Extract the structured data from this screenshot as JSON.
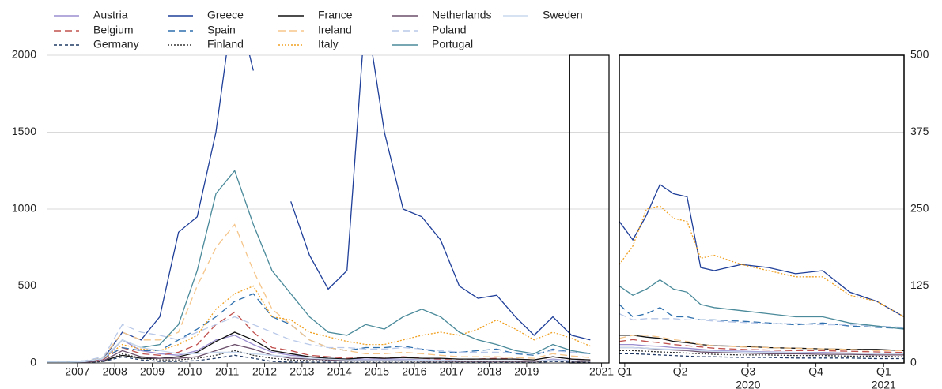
{
  "chart_data": [
    {
      "type": "line",
      "ylim": [
        0,
        2000
      ],
      "yticks": [
        0,
        500,
        1000,
        1500,
        2000
      ],
      "y_axis_side": "left",
      "grid": true,
      "xlim": [
        2006.2,
        2021.2
      ],
      "xticks": [
        2007,
        2008,
        2009,
        2010,
        2011,
        2012,
        2013,
        2014,
        2015,
        2016,
        2017,
        2018,
        2019,
        2021
      ],
      "x": [
        2006.2,
        2006.7,
        2007.2,
        2007.7,
        2008.2,
        2008.7,
        2009.2,
        2009.7,
        2010.2,
        2010.7,
        2011.2,
        2011.7,
        2012.2,
        2012.7,
        2013.2,
        2013.7,
        2014.2,
        2014.7,
        2015.2,
        2015.7,
        2016.2,
        2016.7,
        2017.2,
        2017.7,
        2018.2,
        2018.7,
        2019.2,
        2019.7,
        2020.2,
        2020.7
      ],
      "series": [
        {
          "name": "Austria",
          "color": "#9b8fd0",
          "dash": "solid",
          "values": [
            3,
            3,
            5,
            20,
            150,
            80,
            60,
            50,
            80,
            150,
            180,
            120,
            70,
            50,
            40,
            30,
            25,
            25,
            25,
            25,
            20,
            20,
            15,
            15,
            15,
            15,
            10,
            25,
            15,
            12
          ]
        },
        {
          "name": "Belgium",
          "color": "#c0504d",
          "dash": "dashed",
          "values": [
            3,
            3,
            5,
            25,
            100,
            60,
            50,
            70,
            120,
            250,
            330,
            200,
            100,
            80,
            50,
            40,
            30,
            35,
            30,
            40,
            30,
            25,
            25,
            25,
            30,
            25,
            20,
            40,
            25,
            20
          ]
        },
        {
          "name": "Germany",
          "color": "#1f3864",
          "dash": "short",
          "values": [
            1,
            1,
            2,
            10,
            40,
            20,
            10,
            10,
            15,
            30,
            50,
            30,
            10,
            5,
            5,
            5,
            3,
            3,
            3,
            3,
            3,
            3,
            3,
            3,
            3,
            3,
            2,
            10,
            5,
            3
          ]
        },
        {
          "name": "Greece",
          "color": "#1f3f99",
          "dash": "solid",
          "values": [
            5,
            5,
            10,
            30,
            200,
            150,
            300,
            850,
            950,
            1500,
            2400,
            1900,
            null,
            1050,
            700,
            480,
            600,
            2300,
            1500,
            1000,
            950,
            800,
            500,
            420,
            440,
            300,
            180,
            300,
            180,
            150
          ]
        },
        {
          "name": "Spain",
          "color": "#2e6fad",
          "dash": "dashed",
          "values": [
            5,
            5,
            8,
            30,
            100,
            80,
            80,
            150,
            220,
            300,
            400,
            450,
            300,
            250,
            150,
            100,
            80,
            100,
            100,
            110,
            90,
            70,
            70,
            80,
            90,
            60,
            50,
            90,
            70,
            60
          ]
        },
        {
          "name": "Finland",
          "color": "#333333",
          "dash": "dotted",
          "values": [
            2,
            2,
            3,
            10,
            60,
            30,
            20,
            20,
            30,
            50,
            80,
            50,
            30,
            20,
            15,
            15,
            12,
            12,
            12,
            12,
            10,
            10,
            8,
            8,
            8,
            8,
            6,
            15,
            10,
            8
          ]
        },
        {
          "name": "France",
          "color": "#111111",
          "dash": "solid",
          "values": [
            3,
            3,
            4,
            15,
            50,
            30,
            30,
            40,
            70,
            140,
            200,
            150,
            80,
            60,
            40,
            30,
            25,
            35,
            30,
            35,
            30,
            30,
            25,
            25,
            25,
            25,
            20,
            40,
            25,
            20
          ]
        },
        {
          "name": "Ireland",
          "color": "#f5c58a",
          "dash": "dashed",
          "values": [
            5,
            5,
            8,
            40,
            200,
            150,
            150,
            200,
            500,
            750,
            900,
            600,
            350,
            250,
            150,
            100,
            80,
            60,
            60,
            70,
            60,
            50,
            40,
            40,
            40,
            35,
            30,
            60,
            45,
            35
          ]
        },
        {
          "name": "Italy",
          "color": "#f0a020",
          "dash": "dotted",
          "values": [
            5,
            5,
            8,
            30,
            120,
            90,
            80,
            120,
            180,
            350,
            450,
            500,
            300,
            280,
            200,
            170,
            140,
            120,
            120,
            150,
            180,
            200,
            180,
            220,
            280,
            220,
            150,
            200,
            160,
            110
          ]
        },
        {
          "name": "Netherlands",
          "color": "#6b4f6b",
          "dash": "solid",
          "values": [
            2,
            2,
            4,
            15,
            80,
            40,
            30,
            30,
            40,
            80,
            120,
            90,
            50,
            30,
            25,
            20,
            15,
            15,
            15,
            15,
            12,
            12,
            10,
            10,
            10,
            10,
            8,
            20,
            12,
            10
          ]
        },
        {
          "name": "Poland",
          "color": "#b8c8e8",
          "dash": "dashed",
          "values": [
            10,
            10,
            15,
            40,
            250,
            200,
            180,
            150,
            200,
            250,
            300,
            250,
            200,
            150,
            120,
            100,
            100,
            90,
            90,
            100,
            90,
            80,
            70,
            70,
            70,
            65,
            60,
            80,
            70,
            65
          ]
        },
        {
          "name": "Portugal",
          "color": "#4a8a9a",
          "dash": "solid",
          "values": [
            5,
            5,
            8,
            30,
            150,
            100,
            120,
            250,
            600,
            1100,
            1250,
            900,
            600,
            450,
            300,
            200,
            180,
            250,
            220,
            300,
            350,
            300,
            200,
            150,
            120,
            80,
            60,
            120,
            80,
            60
          ]
        },
        {
          "name": "Sweden",
          "color": "#c8d8ee",
          "dash": "solid",
          "values": [
            5,
            5,
            8,
            30,
            150,
            100,
            80,
            60,
            60,
            70,
            70,
            60,
            50,
            40,
            30,
            25,
            20,
            20,
            20,
            20,
            18,
            18,
            15,
            15,
            15,
            15,
            12,
            20,
            15,
            12
          ]
        }
      ]
    },
    {
      "type": "line",
      "ylim": [
        0,
        500
      ],
      "yticks": [
        0,
        125,
        250,
        375,
        500
      ],
      "y_axis_side": "right",
      "grid": true,
      "xlim": [
        2020.15,
        2021.2
      ],
      "xticks": [
        {
          "value": 2020.17,
          "label": "Q1"
        },
        {
          "value": 2020.375,
          "label": "Q2"
        },
        {
          "value": 2020.625,
          "label": "Q3"
        },
        {
          "value": 2020.875,
          "label": "Q4"
        },
        {
          "value": 2021.125,
          "label": "Q1"
        }
      ],
      "year_labels": [
        {
          "value": 2020.625,
          "label": "2020"
        },
        {
          "value": 2021.125,
          "label": "2021"
        }
      ],
      "x": [
        2020.15,
        2020.2,
        2020.25,
        2020.3,
        2020.35,
        2020.4,
        2020.45,
        2020.5,
        2020.6,
        2020.7,
        2020.8,
        2020.9,
        2021.0,
        2021.1,
        2021.2
      ],
      "series": [
        {
          "name": "Austria",
          "values": [
            30,
            30,
            28,
            27,
            25,
            24,
            22,
            20,
            19,
            18,
            17,
            17,
            16,
            15,
            15
          ]
        },
        {
          "name": "Belgium",
          "values": [
            35,
            38,
            35,
            33,
            30,
            28,
            26,
            24,
            22,
            21,
            20,
            20,
            19,
            18,
            17
          ]
        },
        {
          "name": "Germany",
          "values": [
            15,
            15,
            14,
            13,
            12,
            11,
            10,
            10,
            9,
            9,
            8,
            8,
            8,
            7,
            7
          ]
        },
        {
          "name": "Greece",
          "values": [
            230,
            200,
            240,
            290,
            275,
            270,
            155,
            150,
            160,
            155,
            145,
            150,
            115,
            100,
            75
          ]
        },
        {
          "name": "Spain",
          "values": [
            95,
            75,
            80,
            90,
            75,
            75,
            70,
            70,
            68,
            65,
            62,
            65,
            60,
            58,
            56
          ]
        },
        {
          "name": "Finland",
          "values": [
            20,
            20,
            19,
            18,
            17,
            16,
            15,
            14,
            13,
            13,
            12,
            12,
            11,
            11,
            10
          ]
        },
        {
          "name": "France",
          "values": [
            45,
            45,
            42,
            40,
            35,
            33,
            30,
            28,
            27,
            25,
            24,
            23,
            22,
            22,
            20
          ]
        },
        {
          "name": "Ireland",
          "values": [
            40,
            45,
            45,
            42,
            38,
            35,
            30,
            28,
            26,
            25,
            24,
            23,
            22,
            20,
            20
          ]
        },
        {
          "name": "Italy",
          "values": [
            160,
            190,
            250,
            255,
            235,
            230,
            170,
            175,
            160,
            150,
            140,
            140,
            110,
            100,
            75
          ]
        },
        {
          "name": "Netherlands",
          "values": [
            25,
            25,
            24,
            22,
            21,
            20,
            18,
            17,
            16,
            15,
            15,
            14,
            14,
            13,
            13
          ]
        },
        {
          "name": "Poland",
          "values": [
            80,
            70,
            72,
            72,
            72,
            70,
            70,
            68,
            66,
            64,
            64,
            62,
            62,
            60,
            58
          ]
        },
        {
          "name": "Portugal",
          "values": [
            125,
            110,
            120,
            135,
            120,
            115,
            95,
            90,
            85,
            80,
            75,
            75,
            65,
            60,
            55
          ]
        },
        {
          "name": "Sweden",
          "values": [
            25,
            25,
            24,
            23,
            22,
            21,
            20,
            19,
            18,
            17,
            17,
            16,
            16,
            15,
            15
          ]
        }
      ]
    }
  ]
}
